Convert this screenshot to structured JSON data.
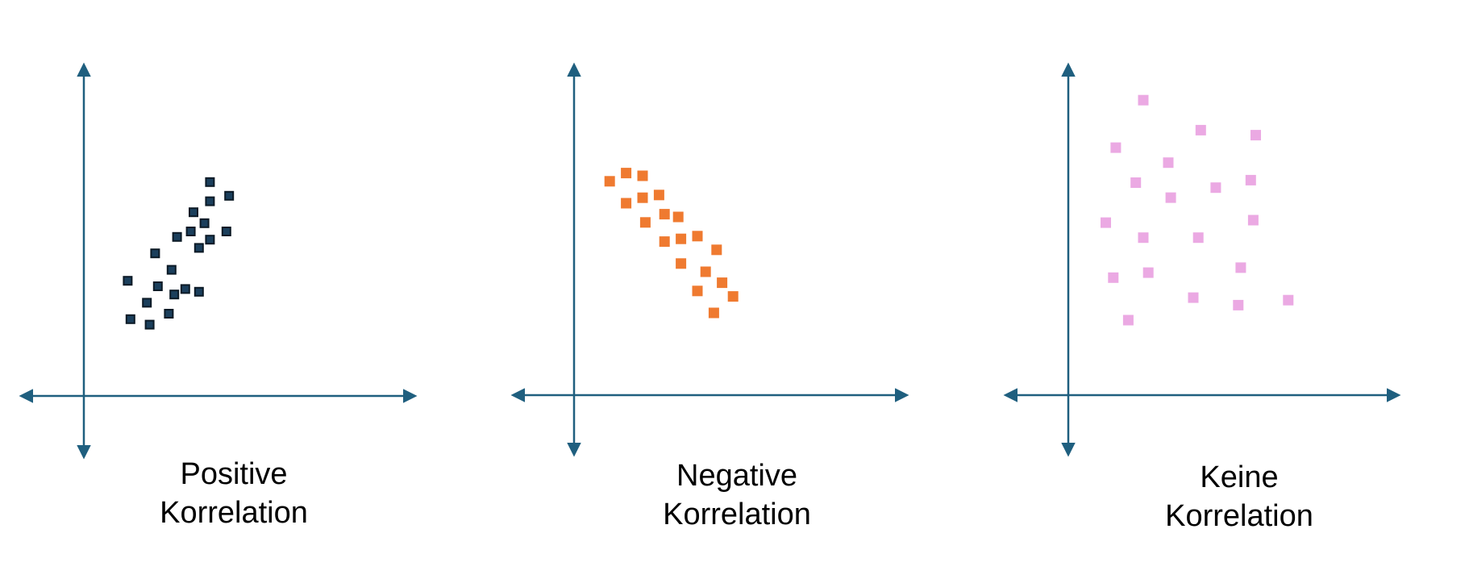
{
  "colors": {
    "axis": "#1f5f7f",
    "positive_point": "#1b3f5c",
    "positive_point_border": "#0c1a26",
    "negative_point": "#ef7a30",
    "none_point": "#eba9e3"
  },
  "chart_data": [
    {
      "type": "scatter",
      "title": "",
      "caption_line1": "Positive",
      "caption_line2": "Korrelation",
      "xlabel": "",
      "ylabel": "",
      "grid": false,
      "marker": "square",
      "color": "#1b3f5c",
      "points": [
        [
          1.6,
          4.2
        ],
        [
          1.7,
          2.8
        ],
        [
          2.3,
          3.4
        ],
        [
          2.4,
          2.6
        ],
        [
          2.7,
          4.0
        ],
        [
          2.6,
          5.2
        ],
        [
          3.2,
          4.6
        ],
        [
          3.1,
          3.0
        ],
        [
          3.3,
          3.7
        ],
        [
          3.4,
          5.8
        ],
        [
          3.7,
          3.9
        ],
        [
          3.9,
          6.0
        ],
        [
          4.0,
          6.7
        ],
        [
          4.2,
          5.4
        ],
        [
          4.2,
          3.8
        ],
        [
          4.4,
          6.3
        ],
        [
          4.6,
          5.7
        ],
        [
          4.6,
          7.1
        ],
        [
          4.6,
          7.8
        ],
        [
          5.2,
          6.0
        ],
        [
          5.3,
          7.3
        ]
      ]
    },
    {
      "type": "scatter",
      "title": "",
      "caption_line1": "Negative",
      "caption_line2": "Korrelation",
      "xlabel": "",
      "ylabel": "",
      "grid": false,
      "marker": "square",
      "color": "#ef7a30",
      "points": [
        [
          1.3,
          7.8
        ],
        [
          1.9,
          8.1
        ],
        [
          1.9,
          7.0
        ],
        [
          2.5,
          7.2
        ],
        [
          2.5,
          8.0
        ],
        [
          3.1,
          7.3
        ],
        [
          2.6,
          6.3
        ],
        [
          3.3,
          6.6
        ],
        [
          3.8,
          6.5
        ],
        [
          3.3,
          5.6
        ],
        [
          3.9,
          5.7
        ],
        [
          4.5,
          5.8
        ],
        [
          3.9,
          4.8
        ],
        [
          5.2,
          5.3
        ],
        [
          4.8,
          4.5
        ],
        [
          4.5,
          3.8
        ],
        [
          5.4,
          4.1
        ],
        [
          5.8,
          3.6
        ],
        [
          5.1,
          3.0
        ]
      ]
    },
    {
      "type": "scatter",
      "title": "",
      "caption_line1": "Keine",
      "caption_line2": "Korrelation",
      "xlabel": "",
      "ylabel": "",
      "grid": false,
      "marker": "square",
      "color": "#eba9e3",
      "points": [
        [
          3.0,
          11.8
        ],
        [
          5.3,
          10.6
        ],
        [
          7.5,
          10.4
        ],
        [
          1.9,
          9.9
        ],
        [
          4.0,
          9.3
        ],
        [
          2.7,
          8.5
        ],
        [
          4.1,
          7.9
        ],
        [
          5.9,
          8.3
        ],
        [
          7.3,
          8.6
        ],
        [
          1.5,
          6.9
        ],
        [
          3.0,
          6.3
        ],
        [
          5.2,
          6.3
        ],
        [
          7.4,
          7.0
        ],
        [
          1.8,
          4.7
        ],
        [
          3.2,
          4.9
        ],
        [
          6.9,
          5.1
        ],
        [
          5.0,
          3.9
        ],
        [
          6.8,
          3.6
        ],
        [
          8.8,
          3.8
        ],
        [
          2.4,
          3.0
        ]
      ]
    }
  ]
}
